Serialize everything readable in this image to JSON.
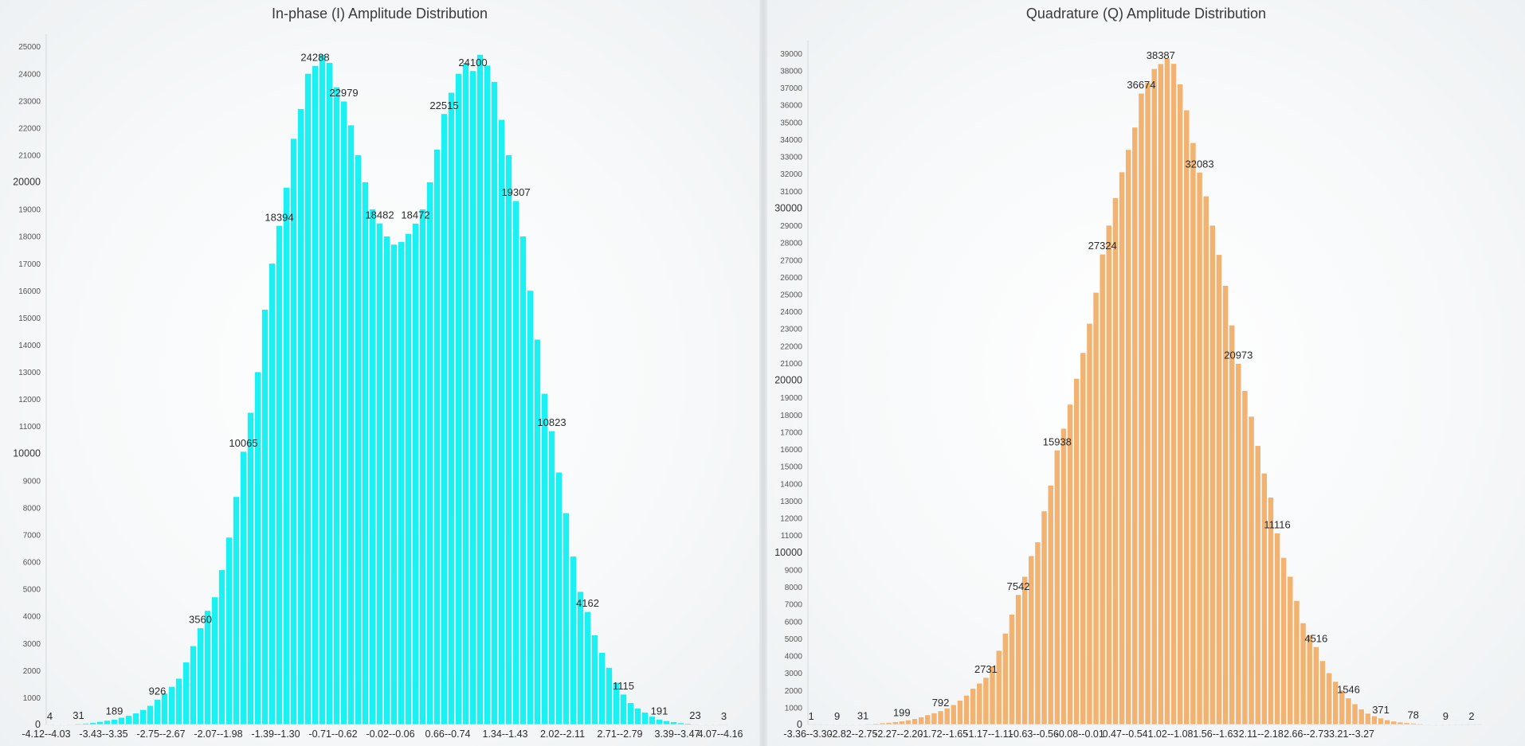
{
  "chart_data": [
    {
      "type": "bar",
      "title": "In-phase (I) Amplitude Distribution",
      "xlabel": "",
      "ylabel": "",
      "ylim": [
        0,
        25300
      ],
      "y_major_ticks": [
        0,
        10000,
        20000
      ],
      "y_minor_step": 1000,
      "grid": false,
      "color": "#1bf0f2",
      "values": [
        4,
        8,
        14,
        22,
        31,
        45,
        70,
        110,
        150,
        189,
        260,
        330,
        420,
        550,
        700,
        926,
        1150,
        1400,
        1700,
        2300,
        2900,
        3560,
        4200,
        4700,
        5700,
        6900,
        8400,
        10065,
        11500,
        13000,
        15300,
        17000,
        18394,
        19800,
        21600,
        22700,
        24000,
        24288,
        24700,
        24400,
        23500,
        22979,
        22100,
        21000,
        20000,
        19000,
        18482,
        18000,
        17700,
        17800,
        18100,
        18472,
        19000,
        20000,
        21200,
        22515,
        23300,
        24000,
        24400,
        24100,
        24700,
        24300,
        23700,
        22300,
        21000,
        19307,
        18000,
        16000,
        14200,
        12200,
        10823,
        9300,
        7800,
        6200,
        4900,
        4162,
        3300,
        2650,
        2100,
        1550,
        1115,
        800,
        600,
        450,
        300,
        191,
        140,
        100,
        60,
        40,
        23,
        14,
        8,
        5,
        3
      ],
      "data_labels": [
        {
          "i": 0,
          "text": "4"
        },
        {
          "i": 4,
          "text": "31"
        },
        {
          "i": 9,
          "text": "189"
        },
        {
          "i": 15,
          "text": "926"
        },
        {
          "i": 21,
          "text": "3560"
        },
        {
          "i": 27,
          "text": "10065"
        },
        {
          "i": 32,
          "text": "18394"
        },
        {
          "i": 37,
          "text": "24288"
        },
        {
          "i": 41,
          "text": "22979"
        },
        {
          "i": 46,
          "text": "18482"
        },
        {
          "i": 51,
          "text": "18472"
        },
        {
          "i": 55,
          "text": "22515"
        },
        {
          "i": 59,
          "text": "24100"
        },
        {
          "i": 65,
          "text": "19307"
        },
        {
          "i": 70,
          "text": "10823"
        },
        {
          "i": 75,
          "text": "4162"
        },
        {
          "i": 80,
          "text": "1115"
        },
        {
          "i": 85,
          "text": "191"
        },
        {
          "i": 90,
          "text": "23"
        },
        {
          "i": 94,
          "text": "3"
        }
      ],
      "tick_labels": [
        {
          "i": 0,
          "text": "-4.12--4.03"
        },
        {
          "i": 8,
          "text": "-3.43--3.35"
        },
        {
          "i": 16,
          "text": "-2.75--2.67"
        },
        {
          "i": 24,
          "text": "-2.07--1.98"
        },
        {
          "i": 32,
          "text": "-1.39--1.30"
        },
        {
          "i": 40,
          "text": "-0.71--0.62"
        },
        {
          "i": 48,
          "text": "-0.02--0.06"
        },
        {
          "i": 56,
          "text": "0.66--0.74"
        },
        {
          "i": 64,
          "text": "1.34--1.43"
        },
        {
          "i": 72,
          "text": "2.02--2.11"
        },
        {
          "i": 80,
          "text": "2.71--2.79"
        },
        {
          "i": 88,
          "text": "3.39--3.47"
        },
        {
          "i": 94,
          "text": "4.07--4.16"
        }
      ]
    },
    {
      "type": "bar",
      "title": "Quadrature (Q) Amplitude Distribution",
      "xlabel": "",
      "ylabel": "",
      "ylim": [
        0,
        39500
      ],
      "y_major_ticks": [
        0,
        10000,
        20000,
        30000
      ],
      "y_minor_step": 1000,
      "grid": false,
      "color": "#f2b271",
      "values": [
        1,
        2,
        4,
        6,
        9,
        13,
        18,
        24,
        31,
        45,
        65,
        90,
        120,
        160,
        199,
        260,
        340,
        440,
        560,
        670,
        792,
        950,
        1150,
        1400,
        1700,
        2100,
        2400,
        2731,
        3400,
        4300,
        5300,
        6400,
        7542,
        8600,
        9800,
        10600,
        12400,
        13900,
        15938,
        17200,
        18600,
        20100,
        21600,
        23300,
        25100,
        27324,
        29000,
        30600,
        32100,
        33400,
        34700,
        36674,
        37300,
        38100,
        38387,
        38700,
        38400,
        37200,
        35700,
        33800,
        32083,
        30700,
        29000,
        27300,
        25500,
        23200,
        20973,
        19400,
        17900,
        16200,
        14600,
        13200,
        11116,
        9700,
        8600,
        7200,
        5900,
        5200,
        4516,
        3700,
        3000,
        2500,
        2000,
        1546,
        1200,
        900,
        650,
        500,
        371,
        270,
        190,
        140,
        100,
        78,
        50,
        35,
        22,
        14,
        9,
        6,
        4,
        3,
        2,
        1
      ],
      "data_labels": [
        {
          "i": 0,
          "text": "1"
        },
        {
          "i": 4,
          "text": "9"
        },
        {
          "i": 8,
          "text": "31"
        },
        {
          "i": 14,
          "text": "199"
        },
        {
          "i": 20,
          "text": "792"
        },
        {
          "i": 27,
          "text": "2731"
        },
        {
          "i": 32,
          "text": "7542"
        },
        {
          "i": 38,
          "text": "15938"
        },
        {
          "i": 45,
          "text": "27324"
        },
        {
          "i": 51,
          "text": "36674"
        },
        {
          "i": 54,
          "text": "38387"
        },
        {
          "i": 60,
          "text": "32083"
        },
        {
          "i": 66,
          "text": "20973"
        },
        {
          "i": 72,
          "text": "11116"
        },
        {
          "i": 78,
          "text": "4516"
        },
        {
          "i": 83,
          "text": "1546"
        },
        {
          "i": 88,
          "text": "371"
        },
        {
          "i": 93,
          "text": "78"
        },
        {
          "i": 98,
          "text": "9"
        },
        {
          "i": 102,
          "text": "2"
        }
      ],
      "tick_labels": [
        {
          "i": 0,
          "text": "-3.36--3.30"
        },
        {
          "i": 7,
          "text": "-2.82--2.75"
        },
        {
          "i": 14,
          "text": "-2.27--2.20"
        },
        {
          "i": 21,
          "text": "-1.72--1.65"
        },
        {
          "i": 28,
          "text": "-1.17--1.11"
        },
        {
          "i": 35,
          "text": "-0.63--0.56"
        },
        {
          "i": 42,
          "text": "-0.08--0.01"
        },
        {
          "i": 49,
          "text": "0.47--0.54"
        },
        {
          "i": 56,
          "text": "1.02--1.08"
        },
        {
          "i": 63,
          "text": "1.56--1.63"
        },
        {
          "i": 70,
          "text": "2.11--2.18"
        },
        {
          "i": 77,
          "text": "2.66--2.73"
        },
        {
          "i": 84,
          "text": "3.21--3.27"
        }
      ]
    }
  ]
}
